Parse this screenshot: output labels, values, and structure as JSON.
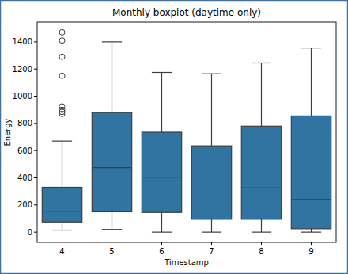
{
  "chart_data": {
    "type": "box",
    "title": "Monthly boxplot (daytime only)",
    "x_label": "Timestamp",
    "y_label": "Energy",
    "categories": [
      "4",
      "5",
      "6",
      "7",
      "8",
      "9"
    ],
    "boxes": [
      {
        "whisker_low": 15,
        "q1": 75,
        "median": 155,
        "q3": 330,
        "whisker_high": 670,
        "outliers": [
          870,
          885,
          900,
          925,
          1150,
          1290,
          1410,
          1470
        ]
      },
      {
        "whisker_low": 20,
        "q1": 150,
        "median": 475,
        "q3": 880,
        "whisker_high": 1400,
        "outliers": []
      },
      {
        "whisker_low": 0,
        "q1": 145,
        "median": 405,
        "q3": 735,
        "whisker_high": 1175,
        "outliers": []
      },
      {
        "whisker_low": 0,
        "q1": 95,
        "median": 295,
        "q3": 635,
        "whisker_high": 1165,
        "outliers": []
      },
      {
        "whisker_low": 0,
        "q1": 95,
        "median": 325,
        "q3": 780,
        "whisker_high": 1245,
        "outliers": []
      },
      {
        "whisker_low": 0,
        "q1": 25,
        "median": 240,
        "q3": 855,
        "whisker_high": 1355,
        "outliers": []
      }
    ],
    "color": "#3274a1",
    "ylim": [
      -75,
      1545
    ],
    "yticks": [
      0,
      200,
      400,
      600,
      800,
      1000,
      1200,
      1400
    ],
    "grid": false
  }
}
